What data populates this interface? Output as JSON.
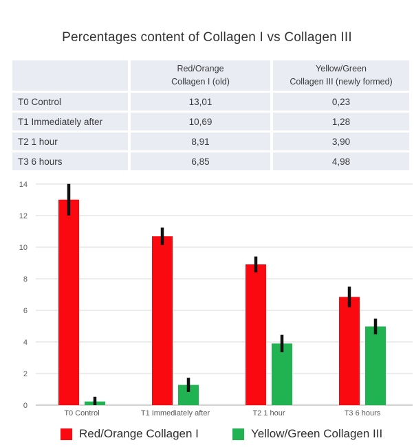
{
  "title": "Percentages content of Collagen I vs Collagen III",
  "table": {
    "columns": [
      {
        "line1": "",
        "line2": ""
      },
      {
        "line1": "Red/Orange",
        "line2": "Collagen I (old)"
      },
      {
        "line1": "Yellow/Green",
        "line2": "Collagen III (newly formed)"
      }
    ],
    "rows": [
      {
        "label": "T0 Control",
        "collagen1": "13,01",
        "collagen3": "0,23"
      },
      {
        "label": "T1 Immediately after",
        "collagen1": "10,69",
        "collagen3": "1,28"
      },
      {
        "label": "T2 1 hour",
        "collagen1": "8,91",
        "collagen3": "3,90"
      },
      {
        "label": "T3 6 hours",
        "collagen1": "6,85",
        "collagen3": "4,98"
      }
    ]
  },
  "chart_data": {
    "type": "bar",
    "categories": [
      "T0 Control",
      "T1 Immediately after",
      "T2 1 hour",
      "T3 6 hours"
    ],
    "series": [
      {
        "name": "Red/Orange Collagen I",
        "color": "#fa0a10",
        "values": [
          13.01,
          10.69,
          8.91,
          6.85
        ],
        "errors": [
          1.0,
          0.55,
          0.5,
          0.65
        ]
      },
      {
        "name": "Yellow/Green Collagen III",
        "color": "#21b351",
        "values": [
          0.23,
          1.28,
          3.9,
          4.98
        ],
        "errors": [
          0.3,
          0.45,
          0.55,
          0.5
        ]
      }
    ],
    "title": "",
    "xlabel": "",
    "ylabel": "",
    "ylim": [
      0,
      14
    ],
    "ytick_step": 2,
    "grid": true,
    "legend_position": "bottom",
    "error_bars": true,
    "error_bar_color": "#111111"
  },
  "colors": {
    "table_cell_bg": "#e9ecf3",
    "gridline": "#d9d9d9",
    "axis_line": "#a6a6a6",
    "axis_text": "#595959",
    "title_text": "#333333",
    "legend_text": "#2e2e2e"
  }
}
